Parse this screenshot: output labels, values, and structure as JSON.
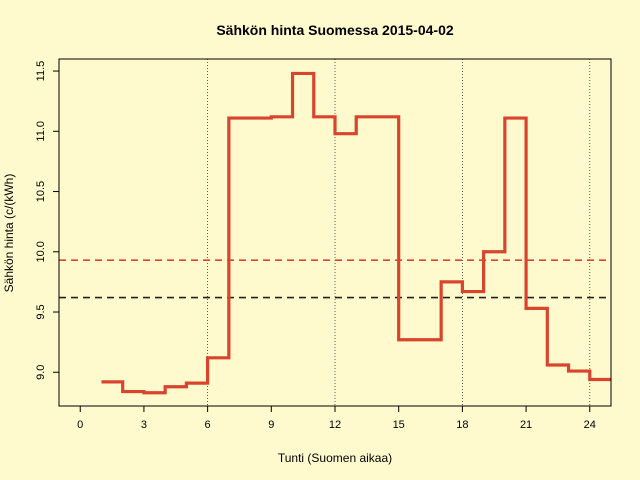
{
  "chart_data": {
    "type": "line",
    "title": "Sähkön hinta Suomessa 2015-04-02",
    "xlabel": "Tunti (Suomen aikaa)",
    "ylabel": "Sähkön hinta (c/(kWh)",
    "xlim": [
      -1,
      25
    ],
    "ylim": [
      8.72,
      11.6
    ],
    "xticks": [
      0,
      3,
      6,
      9,
      12,
      15,
      18,
      21,
      24
    ],
    "yticks": [
      9.0,
      9.5,
      10.0,
      10.5,
      11.0,
      11.5
    ],
    "ytick_labels": [
      "9.0",
      "9.5",
      "10.0",
      "10.5",
      "11.0",
      "11.5"
    ],
    "vlines": [
      6,
      12,
      18,
      24
    ],
    "hlines": [
      {
        "value": 9.93,
        "color": "#dd4433",
        "style": "dashed"
      },
      {
        "value": 9.62,
        "color": "#222222",
        "style": "dashed"
      }
    ],
    "series": [
      {
        "style": "step",
        "color": "#d9442e",
        "x": [
          1,
          2,
          3,
          4,
          5,
          6,
          7,
          8,
          9,
          10,
          11,
          12,
          13,
          14,
          15,
          16,
          17,
          18,
          19,
          20,
          21,
          22,
          23,
          24
        ],
        "y": [
          8.92,
          8.84,
          8.83,
          8.88,
          8.91,
          9.12,
          11.11,
          11.11,
          11.12,
          11.48,
          11.12,
          10.98,
          11.12,
          11.12,
          9.27,
          9.27,
          9.75,
          9.67,
          10.0,
          11.11,
          9.53,
          9.06,
          9.01,
          8.94
        ]
      }
    ]
  }
}
